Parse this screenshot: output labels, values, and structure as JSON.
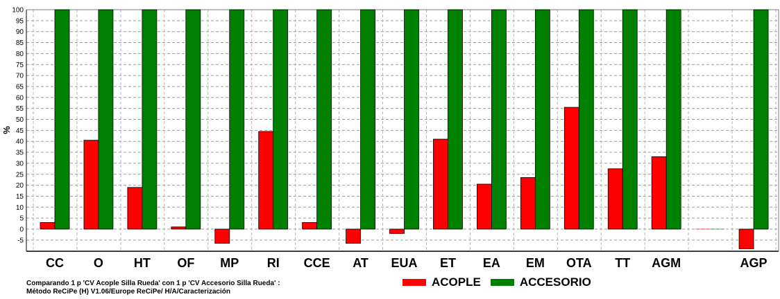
{
  "chart_data": {
    "type": "bar",
    "ylabel": "%",
    "ylim": [
      -5,
      100
    ],
    "yticks": [
      100,
      95,
      90,
      85,
      80,
      75,
      70,
      65,
      60,
      55,
      50,
      45,
      40,
      35,
      30,
      25,
      20,
      15,
      10,
      5,
      0,
      -5
    ],
    "grid": true,
    "categories": [
      "CC",
      "O",
      "HT",
      "OF",
      "MP",
      "RI",
      "CCE",
      "AT",
      "EUA",
      "ET",
      "EA",
      "EM",
      "OTA",
      "TT",
      "AGM",
      "",
      "AGP"
    ],
    "series": [
      {
        "name": "ACOPLE",
        "color": "#ff0000",
        "values": [
          3,
          40.5,
          19,
          1,
          -6.5,
          44.5,
          3,
          -6.5,
          -2,
          41,
          20.5,
          23.5,
          55.5,
          27.5,
          33,
          0.1,
          -9
        ]
      },
      {
        "name": "ACCESORIO",
        "color": "#008000",
        "values": [
          100,
          100,
          100,
          100,
          100,
          100,
          100,
          100,
          100,
          100,
          100,
          100,
          100,
          100,
          100,
          0.1,
          100
        ]
      }
    ],
    "legend_position": "bottom"
  },
  "caption": {
    "line1": "Comparando 1 p 'CV Acople Silla Rueda'  con 1 p 'CV Accesorio Silla Rueda'  :",
    "line2": "Método ReCiPe (H) V1.06/Europe ReCiPe/ H/A/Caracterización"
  }
}
